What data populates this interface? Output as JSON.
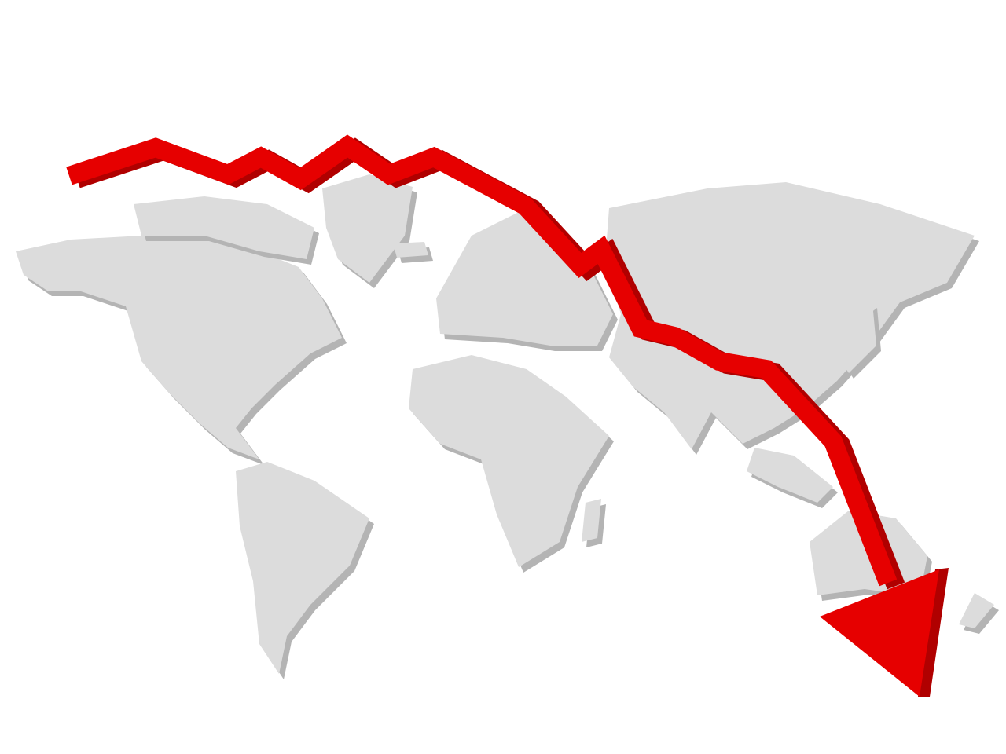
{
  "illustration": {
    "subject": "world-map-with-falling-trend-arrow",
    "colors": {
      "background": "#ffffff",
      "land": "#dcdcdc",
      "land_shadow": "#b4b4b4",
      "arrow": "#e60000",
      "arrow_shadow": "#b00000"
    }
  }
}
